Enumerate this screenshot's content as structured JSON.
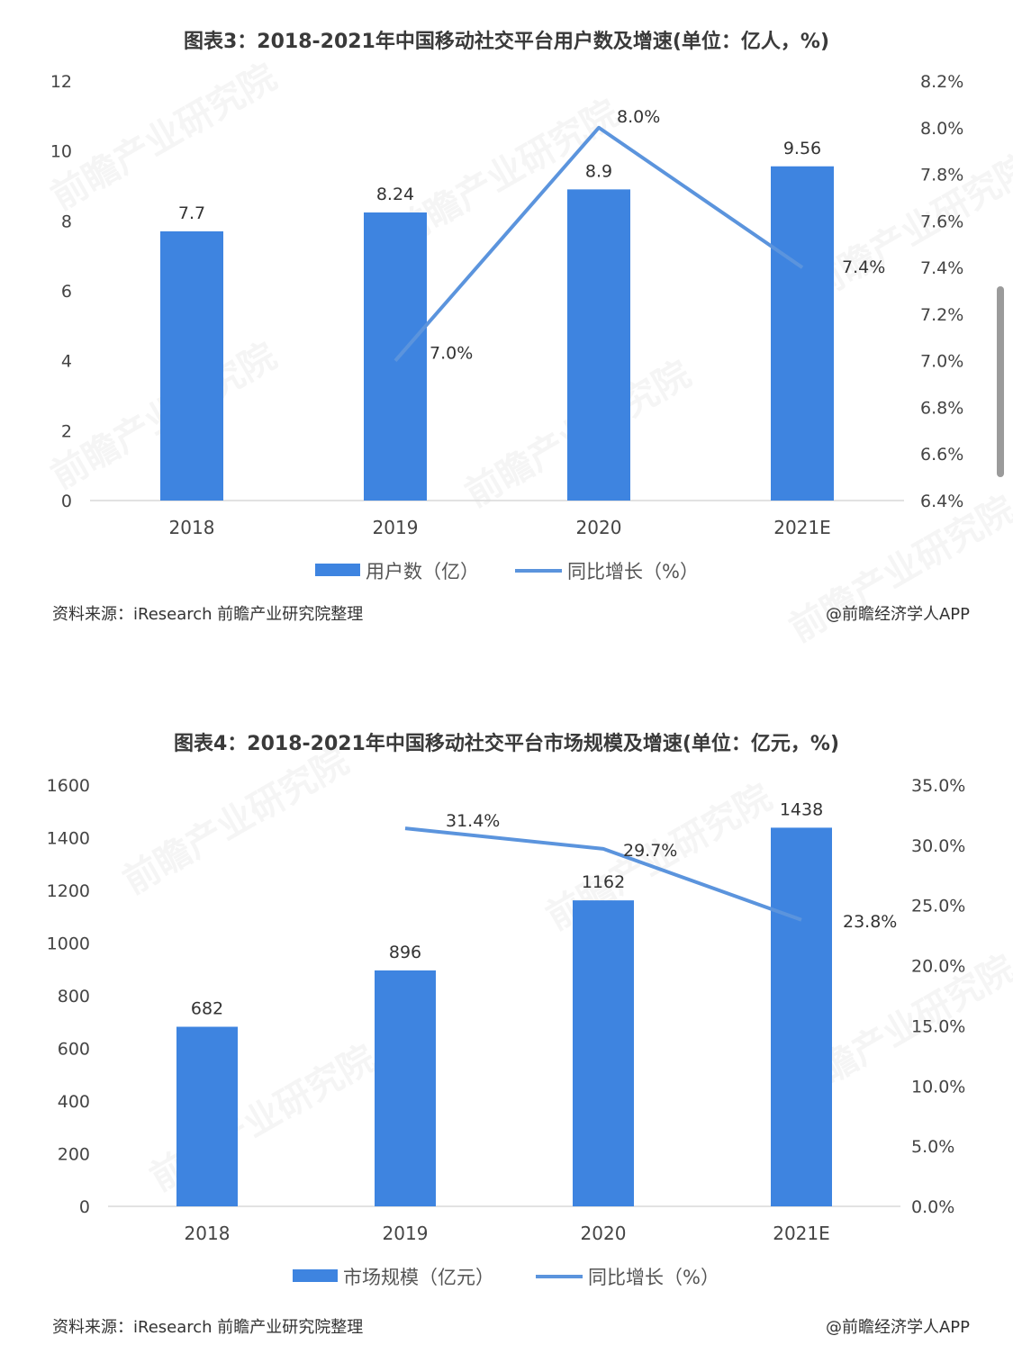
{
  "chart_data": [
    {
      "type": "bar",
      "title": "图表3：2018-2021年中国移动社交平台用户数及增速(单位：亿人，%)",
      "categories": [
        "2018",
        "2019",
        "2020",
        "2021E"
      ],
      "ylim_left": [
        0,
        12
      ],
      "yticks_left": [
        "0",
        "2",
        "4",
        "6",
        "8",
        "10",
        "12"
      ],
      "ylim_right": [
        6.4,
        8.2
      ],
      "yticks_right": [
        "6.4%",
        "6.6%",
        "6.8%",
        "7.0%",
        "7.2%",
        "7.4%",
        "7.6%",
        "7.8%",
        "8.0%",
        "8.2%"
      ],
      "series": [
        {
          "name": "用户数（亿）",
          "kind": "bar",
          "axis": "left",
          "color": "#3e84e0",
          "values": [
            7.7,
            8.24,
            8.9,
            9.56
          ],
          "labels": [
            "7.7",
            "8.24",
            "8.9",
            "9.56"
          ]
        },
        {
          "name": "同比增长（%）",
          "kind": "line",
          "axis": "right",
          "color": "#5b94dd",
          "values": [
            null,
            7.0,
            8.0,
            7.4
          ],
          "labels": [
            "",
            "7.0%",
            "8.0%",
            "7.4%"
          ]
        }
      ],
      "legend": "bottom",
      "source": "资料来源：iResearch 前瞻产业研究院整理",
      "credit": "@前瞻经济学人APP",
      "watermark": "前瞻产业研究院"
    },
    {
      "type": "bar",
      "title": "图表4：2018-2021年中国移动社交平台市场规模及增速(单位：亿元，%)",
      "categories": [
        "2018",
        "2019",
        "2020",
        "2021E"
      ],
      "ylim_left": [
        0,
        1600
      ],
      "yticks_left": [
        "0",
        "200",
        "400",
        "600",
        "800",
        "1000",
        "1200",
        "1400",
        "1600"
      ],
      "ylim_right": [
        0,
        35
      ],
      "yticks_right": [
        "0.0%",
        "5.0%",
        "10.0%",
        "15.0%",
        "20.0%",
        "25.0%",
        "30.0%",
        "35.0%"
      ],
      "series": [
        {
          "name": "市场规模（亿元）",
          "kind": "bar",
          "axis": "left",
          "color": "#3e84e0",
          "values": [
            682,
            896,
            1162,
            1438
          ],
          "labels": [
            "682",
            "896",
            "1162",
            "1438"
          ]
        },
        {
          "name": "同比增长（%）",
          "kind": "line",
          "axis": "right",
          "color": "#5b94dd",
          "values": [
            null,
            31.4,
            29.7,
            23.8
          ],
          "labels": [
            "",
            "31.4%",
            "29.7%",
            "23.8%"
          ]
        }
      ],
      "legend": "bottom",
      "source": "资料来源：iResearch 前瞻产业研究院整理",
      "credit": "@前瞻经济学人APP",
      "watermark": "前瞻产业研究院"
    }
  ]
}
